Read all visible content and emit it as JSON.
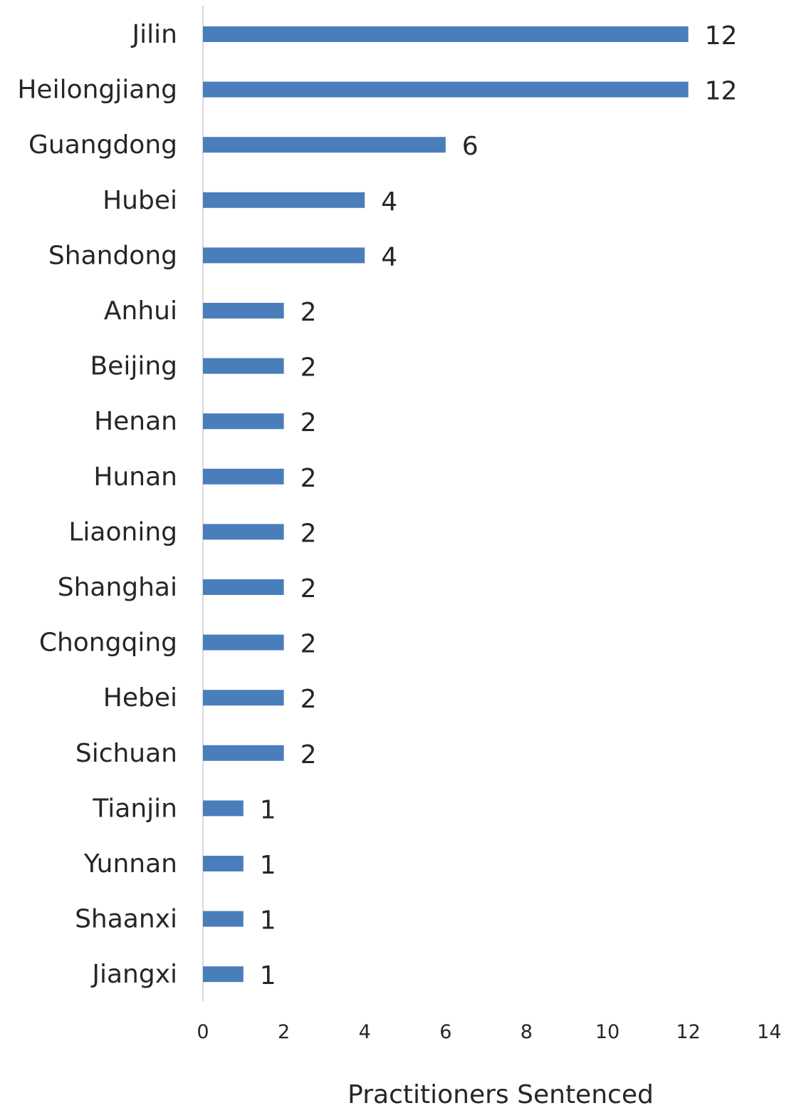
{
  "chart_data": {
    "type": "bar",
    "orientation": "horizontal",
    "title": "",
    "xlabel": "Practitioners Sentenced",
    "ylabel": "",
    "categories": [
      "Jilin",
      "Heilongjiang",
      "Guangdong",
      "Hubei",
      "Shandong",
      "Anhui",
      "Beijing",
      "Henan",
      "Hunan",
      "Liaoning",
      "Shanghai",
      "Chongqing",
      "Hebei",
      "Sichuan",
      "Tianjin",
      "Yunnan",
      "Shaanxi",
      "Jiangxi"
    ],
    "values": [
      12,
      12,
      6,
      4,
      4,
      2,
      2,
      2,
      2,
      2,
      2,
      2,
      2,
      2,
      1,
      1,
      1,
      1
    ],
    "xlim": [
      0,
      14
    ],
    "xticks": [
      "0",
      "2",
      "4",
      "6",
      "8",
      "10",
      "12",
      "14"
    ],
    "grid": false,
    "data_labels": true,
    "bar_color": "#4a7ebb",
    "axis_color": "#d9d9d9",
    "text_color": "#262626"
  }
}
